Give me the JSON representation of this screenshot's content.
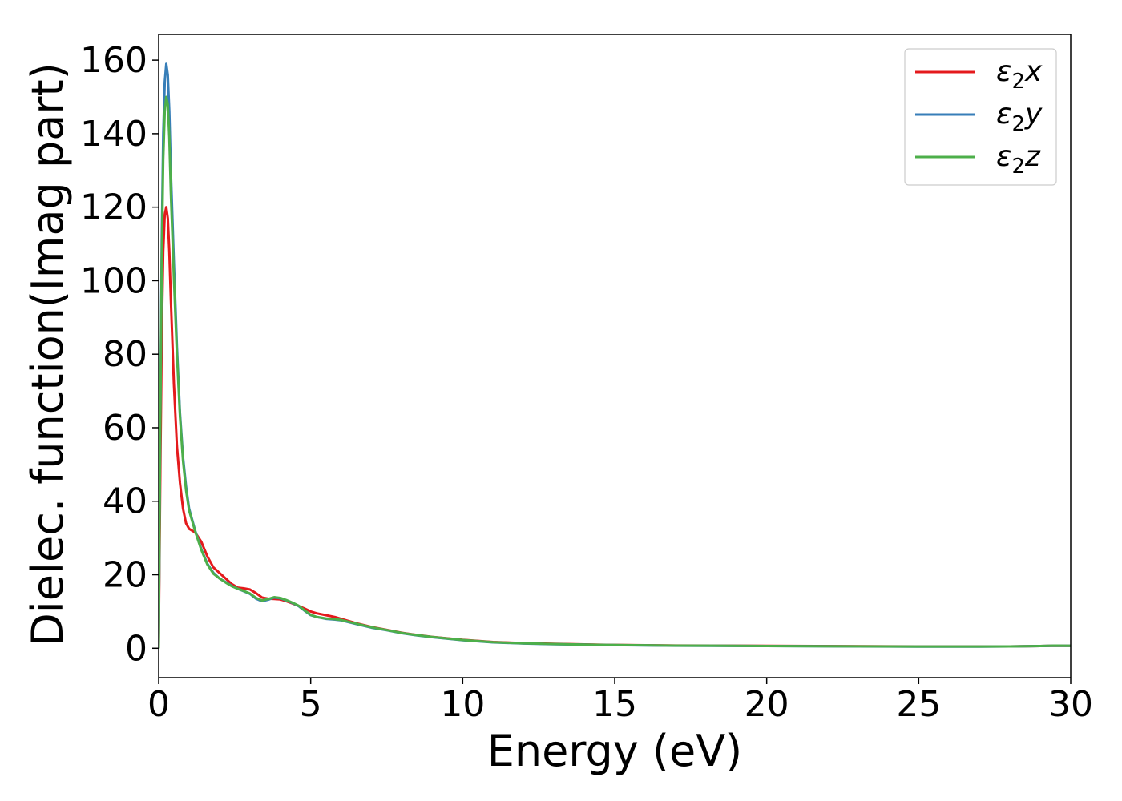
{
  "chart_data": {
    "type": "line",
    "title": "",
    "xlabel": "Energy (eV)",
    "ylabel": "Dielec. function(Imag part)",
    "xlim": [
      0,
      30
    ],
    "ylim": [
      -8,
      167
    ],
    "xticks": [
      0,
      5,
      10,
      15,
      20,
      25,
      30
    ],
    "yticks": [
      0,
      20,
      40,
      60,
      80,
      100,
      120,
      140,
      160
    ],
    "grid": false,
    "legend_position": "top-right",
    "series": [
      {
        "name": "ε₂x",
        "legend_main": "ε",
        "legend_sub": "2",
        "legend_var": "x",
        "color": "#e41a1c",
        "points": [
          [
            0,
            0
          ],
          [
            0.05,
            45
          ],
          [
            0.1,
            85
          ],
          [
            0.15,
            108
          ],
          [
            0.2,
            118
          ],
          [
            0.25,
            120
          ],
          [
            0.3,
            117
          ],
          [
            0.35,
            108
          ],
          [
            0.4,
            95
          ],
          [
            0.5,
            72
          ],
          [
            0.6,
            55
          ],
          [
            0.7,
            45
          ],
          [
            0.8,
            38
          ],
          [
            0.9,
            34
          ],
          [
            1.0,
            32.5
          ],
          [
            1.2,
            31.5
          ],
          [
            1.4,
            29
          ],
          [
            1.6,
            25
          ],
          [
            1.8,
            22
          ],
          [
            2.0,
            20.5
          ],
          [
            2.2,
            19
          ],
          [
            2.4,
            17.5
          ],
          [
            2.6,
            16.5
          ],
          [
            2.8,
            16.3
          ],
          [
            3.0,
            16
          ],
          [
            3.2,
            15
          ],
          [
            3.4,
            13.8
          ],
          [
            3.6,
            13.5
          ],
          [
            3.8,
            13.4
          ],
          [
            4.0,
            13.3
          ],
          [
            4.2,
            12.8
          ],
          [
            4.4,
            12.2
          ],
          [
            4.6,
            11.5
          ],
          [
            4.8,
            10.8
          ],
          [
            5.0,
            10
          ],
          [
            5.2,
            9.5
          ],
          [
            5.5,
            9
          ],
          [
            5.8,
            8.5
          ],
          [
            6.0,
            8
          ],
          [
            6.5,
            6.8
          ],
          [
            7.0,
            5.8
          ],
          [
            7.5,
            5
          ],
          [
            8.0,
            4.2
          ],
          [
            8.5,
            3.6
          ],
          [
            9.0,
            3.1
          ],
          [
            10.0,
            2.3
          ],
          [
            11.0,
            1.7
          ],
          [
            12.0,
            1.4
          ],
          [
            13.0,
            1.2
          ],
          [
            14.0,
            1.05
          ],
          [
            15.0,
            0.9
          ],
          [
            17.0,
            0.75
          ],
          [
            20.0,
            0.65
          ],
          [
            23.0,
            0.55
          ],
          [
            25.0,
            0.5
          ],
          [
            27.0,
            0.5
          ],
          [
            28.0,
            0.5
          ],
          [
            29.0,
            0.6
          ],
          [
            29.5,
            0.7
          ],
          [
            30.0,
            0.65
          ]
        ]
      },
      {
        "name": "ε₂y",
        "legend_main": "ε",
        "legend_sub": "2",
        "legend_var": "y",
        "color": "#377eb8",
        "points": [
          [
            0,
            0
          ],
          [
            0.05,
            60
          ],
          [
            0.1,
            110
          ],
          [
            0.15,
            140
          ],
          [
            0.2,
            154
          ],
          [
            0.25,
            159
          ],
          [
            0.3,
            156
          ],
          [
            0.35,
            146
          ],
          [
            0.4,
            130
          ],
          [
            0.5,
            105
          ],
          [
            0.6,
            82
          ],
          [
            0.7,
            64
          ],
          [
            0.8,
            52
          ],
          [
            0.9,
            44
          ],
          [
            1.0,
            38
          ],
          [
            1.2,
            32
          ],
          [
            1.4,
            27
          ],
          [
            1.6,
            23
          ],
          [
            1.8,
            20.5
          ],
          [
            2.0,
            19
          ],
          [
            2.2,
            18
          ],
          [
            2.4,
            17
          ],
          [
            2.6,
            16.2
          ],
          [
            2.8,
            15.5
          ],
          [
            3.0,
            14.8
          ],
          [
            3.2,
            13.5
          ],
          [
            3.4,
            12.8
          ],
          [
            3.6,
            13.2
          ],
          [
            3.8,
            13.8
          ],
          [
            4.0,
            13.6
          ],
          [
            4.2,
            13
          ],
          [
            4.4,
            12.3
          ],
          [
            4.6,
            11.5
          ],
          [
            4.8,
            10.2
          ],
          [
            5.0,
            9
          ],
          [
            5.2,
            8.5
          ],
          [
            5.5,
            8
          ],
          [
            5.8,
            7.8
          ],
          [
            6.0,
            7.6
          ],
          [
            6.5,
            6.6
          ],
          [
            7.0,
            5.6
          ],
          [
            7.5,
            4.9
          ],
          [
            8.0,
            4.1
          ],
          [
            8.5,
            3.5
          ],
          [
            9.0,
            3
          ],
          [
            10.0,
            2.2
          ],
          [
            11.0,
            1.6
          ],
          [
            12.0,
            1.3
          ],
          [
            13.0,
            1.1
          ],
          [
            14.0,
            1
          ],
          [
            15.0,
            0.85
          ],
          [
            17.0,
            0.7
          ],
          [
            20.0,
            0.6
          ],
          [
            23.0,
            0.5
          ],
          [
            25.0,
            0.45
          ],
          [
            27.0,
            0.45
          ],
          [
            28.0,
            0.5
          ],
          [
            29.0,
            0.6
          ],
          [
            29.5,
            0.7
          ],
          [
            30.0,
            0.65
          ]
        ]
      },
      {
        "name": "ε₂z",
        "legend_main": "ε",
        "legend_sub": "2",
        "legend_var": "z",
        "color": "#4daf4a",
        "points": [
          [
            0,
            0
          ],
          [
            0.05,
            58
          ],
          [
            0.1,
            105
          ],
          [
            0.15,
            133
          ],
          [
            0.2,
            146
          ],
          [
            0.25,
            150
          ],
          [
            0.3,
            148
          ],
          [
            0.35,
            139
          ],
          [
            0.4,
            124
          ],
          [
            0.5,
            101
          ],
          [
            0.6,
            80
          ],
          [
            0.7,
            63
          ],
          [
            0.8,
            51
          ],
          [
            0.9,
            43
          ],
          [
            1.0,
            37.5
          ],
          [
            1.2,
            31.8
          ],
          [
            1.4,
            26.8
          ],
          [
            1.6,
            22.8
          ],
          [
            1.8,
            20.3
          ],
          [
            2.0,
            19
          ],
          [
            2.2,
            17.9
          ],
          [
            2.4,
            16.9
          ],
          [
            2.6,
            16.2
          ],
          [
            2.8,
            15.6
          ],
          [
            3.0,
            14.9
          ],
          [
            3.2,
            13.7
          ],
          [
            3.4,
            13
          ],
          [
            3.6,
            13.4
          ],
          [
            3.8,
            13.9
          ],
          [
            4.0,
            13.7
          ],
          [
            4.2,
            13.1
          ],
          [
            4.4,
            12.4
          ],
          [
            4.6,
            11.6
          ],
          [
            4.8,
            10.3
          ],
          [
            5.0,
            9.1
          ],
          [
            5.2,
            8.5
          ],
          [
            5.5,
            8.1
          ],
          [
            5.8,
            7.9
          ],
          [
            6.0,
            7.7
          ],
          [
            6.5,
            6.7
          ],
          [
            7.0,
            5.7
          ],
          [
            7.5,
            4.95
          ],
          [
            8.0,
            4.15
          ],
          [
            8.5,
            3.55
          ],
          [
            9.0,
            3.05
          ],
          [
            10.0,
            2.25
          ],
          [
            11.0,
            1.65
          ],
          [
            12.0,
            1.35
          ],
          [
            13.0,
            1.15
          ],
          [
            14.0,
            1
          ],
          [
            15.0,
            0.88
          ],
          [
            17.0,
            0.72
          ],
          [
            20.0,
            0.62
          ],
          [
            23.0,
            0.52
          ],
          [
            25.0,
            0.47
          ],
          [
            27.0,
            0.47
          ],
          [
            28.0,
            0.5
          ],
          [
            29.0,
            0.62
          ],
          [
            29.5,
            0.72
          ],
          [
            30.0,
            0.67
          ]
        ]
      }
    ]
  }
}
